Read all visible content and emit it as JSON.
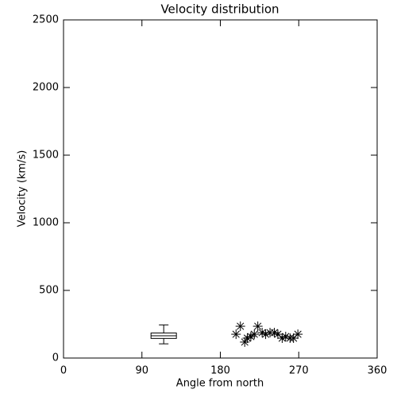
{
  "chart_data": {
    "type": "scatter",
    "title": "Velocity distribution",
    "x_label": "Angle from north",
    "y_label": "Velocity (km/s)",
    "xlim": [
      0,
      360
    ],
    "xticks": [
      0,
      90,
      180,
      270,
      360
    ],
    "ylim": [
      0,
      2500
    ],
    "yticks": [
      0,
      500,
      1000,
      1500,
      2000,
      2500
    ],
    "color": "#000000",
    "marker": "asterisk",
    "x": [
      198,
      203,
      208,
      211,
      215,
      219,
      223,
      228,
      232,
      237,
      242,
      246,
      251,
      255,
      260,
      264,
      269
    ],
    "values": [
      176,
      235,
      118,
      147,
      159,
      176,
      235,
      188,
      176,
      188,
      188,
      176,
      147,
      159,
      147,
      147,
      176
    ],
    "box": {
      "type": "box",
      "x": 115,
      "min": 105,
      "q1": 145,
      "median": 165,
      "q3": 185,
      "max": 245
    }
  }
}
